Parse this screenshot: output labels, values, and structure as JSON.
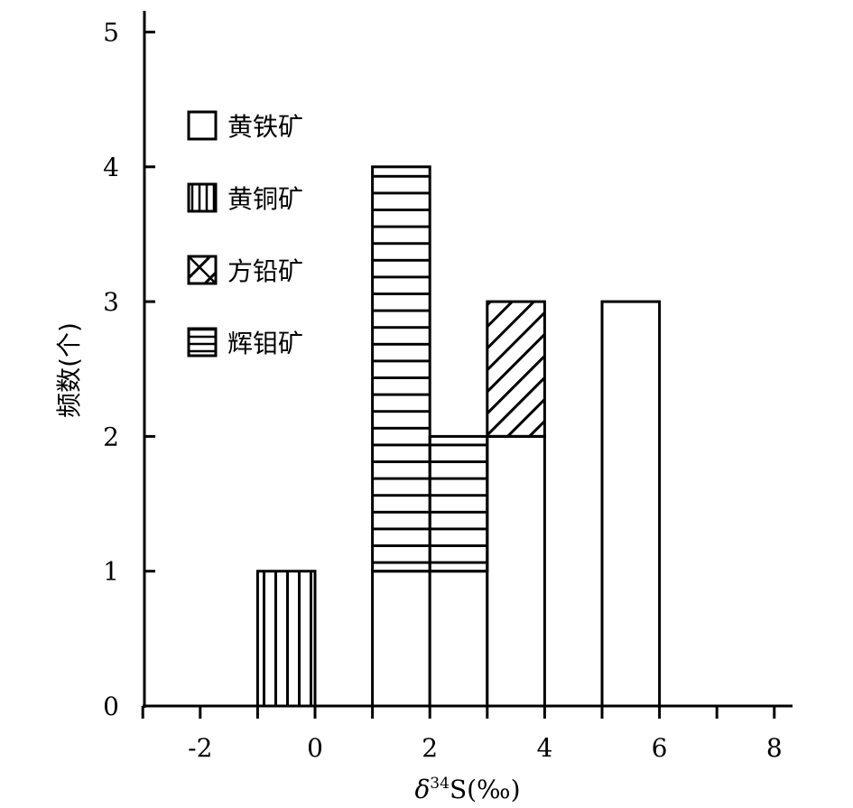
{
  "chart_data": {
    "type": "bar",
    "subtype": "stacked-histogram",
    "title": "",
    "xlabel_parts": {
      "delta": "δ",
      "sup": "34",
      "rest": "S(‰)"
    },
    "ylabel": "频数(个)",
    "xlim": [
      -3,
      8.3
    ],
    "ylim": [
      0,
      5
    ],
    "xticks": [
      -2,
      0,
      2,
      4,
      6,
      8
    ],
    "xtick_labels": [
      "-2",
      "0",
      "2",
      "4",
      "6",
      "8"
    ],
    "yticks": [
      0,
      1,
      2,
      3,
      4,
      5
    ],
    "ytick_labels": [
      "0",
      "1",
      "2",
      "3",
      "4",
      "5"
    ],
    "bin_edges": [
      -1,
      0,
      1,
      2,
      3,
      4,
      5,
      6
    ],
    "series": [
      {
        "key": "pyrite",
        "name": "黄铁矿",
        "pattern": "empty",
        "bars": [
          {
            "x0": 1,
            "x1": 2,
            "y0": 0,
            "y1": 1
          },
          {
            "x0": 2,
            "x1": 3,
            "y0": 0,
            "y1": 1
          },
          {
            "x0": 3,
            "x1": 4,
            "y0": 0,
            "y1": 2
          },
          {
            "x0": 5,
            "x1": 6,
            "y0": 0,
            "y1": 3
          }
        ]
      },
      {
        "key": "chalcopyrite",
        "name": "黄铜矿",
        "pattern": "vertical",
        "bars": [
          {
            "x0": -1,
            "x1": 0,
            "y0": 0,
            "y1": 1
          }
        ]
      },
      {
        "key": "galena",
        "name": "方铅矿",
        "pattern": "diagonal",
        "bars": [
          {
            "x0": 3,
            "x1": 4,
            "y0": 2,
            "y1": 3
          }
        ]
      },
      {
        "key": "molybdenite",
        "name": "辉钼矿",
        "pattern": "horizontal",
        "bars": [
          {
            "x0": 1,
            "x1": 2,
            "y0": 1,
            "y1": 4
          },
          {
            "x0": 2,
            "x1": 3,
            "y0": 1,
            "y1": 2
          }
        ]
      }
    ],
    "legend": {
      "placement": "top-left"
    },
    "grid": false
  }
}
